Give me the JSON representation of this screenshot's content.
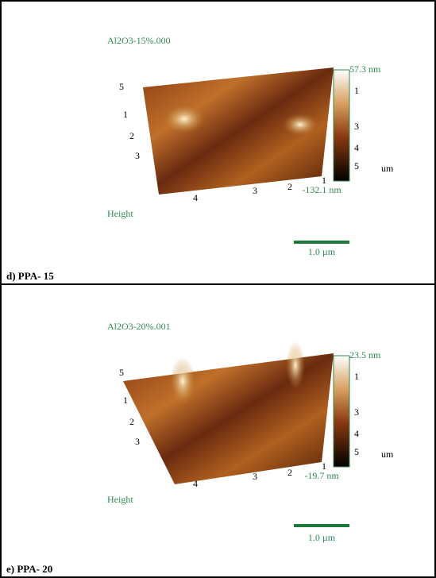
{
  "panels": [
    {
      "title": "Al2O3-15%.000",
      "max_label": "57.3 nm",
      "min_label": "-132.1 nm",
      "colorbar_ticks": [
        "1",
        "3",
        "4",
        "5"
      ],
      "unit": "um",
      "left_ticks": [
        "5",
        "1",
        "2",
        "3"
      ],
      "bottom_ticks": [
        "4",
        "3",
        "2",
        "1"
      ],
      "height_label": "Height",
      "scale_bar": "1.0 µm",
      "caption": "d) PPA- 15"
    },
    {
      "title": "Al2O3-20%.001",
      "max_label": "23.5 nm",
      "min_label": "-19.7 nm",
      "colorbar_ticks": [
        "1",
        "3",
        "4",
        "5"
      ],
      "unit": "um",
      "left_ticks": [
        "5",
        "1",
        "2",
        "3"
      ],
      "bottom_ticks": [
        "4",
        "3",
        "2",
        "1"
      ],
      "height_label": "Height",
      "scale_bar": "1.0 µm",
      "caption": "e) PPA- 20"
    }
  ]
}
